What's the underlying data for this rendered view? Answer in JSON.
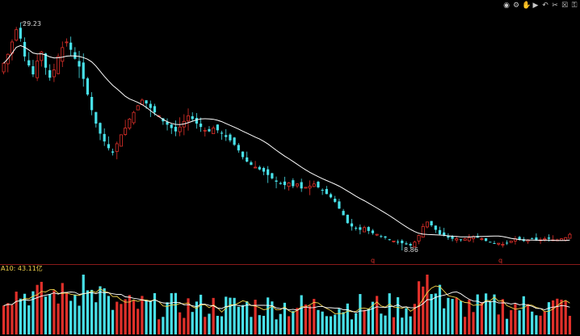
{
  "toolbar": {
    "items": [
      {
        "name": "eye-icon",
        "glyph": "◉"
      },
      {
        "name": "settings-icon",
        "glyph": "⚙"
      },
      {
        "name": "hand-icon",
        "glyph": "✋"
      },
      {
        "name": "play-icon",
        "glyph": "▶"
      },
      {
        "name": "undo-icon",
        "glyph": "↶"
      },
      {
        "name": "scissors-icon",
        "glyph": "✂"
      },
      {
        "name": "trash-icon",
        "glyph": "☒"
      },
      {
        "name": "lock-icon",
        "glyph": "⚿"
      }
    ]
  },
  "volume": {
    "label": "A10: 43.11亿"
  },
  "price": {
    "high_label": "29.23",
    "low_label": "8.86"
  },
  "markers": {
    "q1": "q",
    "q2": "q"
  },
  "colors": {
    "up": "#e0302a",
    "down": "#48e0e8",
    "ma_price": "#ffffff",
    "ma_vol1": "#f2d24b",
    "ma_vol2": "#ffffff",
    "divider": "#8a1a1a"
  },
  "chart_data": {
    "type": "candlestick",
    "y_reference": {
      "high": 29.23,
      "low": 8.86
    },
    "close_series": [
      25.6,
      26.4,
      27.5,
      28.6,
      27.8,
      26.2,
      25.4,
      24.6,
      25.8,
      26.6,
      25.2,
      24.3,
      25.0,
      26.2,
      27.0,
      27.5,
      26.8,
      26.0,
      25.3,
      24.2,
      22.8,
      21.4,
      20.2,
      19.3,
      18.6,
      18.0,
      17.6,
      18.4,
      19.2,
      19.8,
      20.6,
      21.2,
      21.8,
      22.3,
      22.0,
      21.6,
      21.2,
      20.9,
      20.4,
      20.1,
      19.8,
      19.5,
      19.9,
      20.4,
      20.9,
      20.6,
      20.2,
      19.9,
      19.6,
      19.5,
      19.8,
      19.6,
      19.3,
      19.0,
      18.7,
      18.3,
      17.8,
      17.2,
      16.8,
      16.5,
      16.3,
      16.1,
      15.9,
      15.6,
      15.3,
      15.0,
      14.8,
      14.7,
      14.9,
      14.6,
      14.8,
      14.4,
      14.5,
      14.6,
      14.8,
      14.5,
      14.2,
      13.9,
      13.6,
      13.2,
      12.6,
      12.0,
      11.3,
      11.0,
      10.8,
      10.7,
      10.9,
      10.6,
      10.4,
      10.3,
      10.1,
      10.0,
      9.8,
      9.7,
      9.6,
      9.5,
      9.4,
      9.3,
      9.6,
      10.2,
      11.0,
      11.4,
      11.1,
      10.7,
      10.3,
      10.2,
      10.0,
      9.9,
      9.9,
      9.8,
      9.9,
      10.0,
      10.1,
      10.0,
      9.9,
      9.7,
      9.6,
      9.5,
      9.5,
      9.4,
      9.5,
      9.7,
      9.9,
      9.8,
      9.7,
      9.8,
      9.9,
      9.8,
      9.8,
      9.9,
      9.9,
      9.8,
      9.8,
      9.9,
      10.0,
      10.3
    ]
  }
}
